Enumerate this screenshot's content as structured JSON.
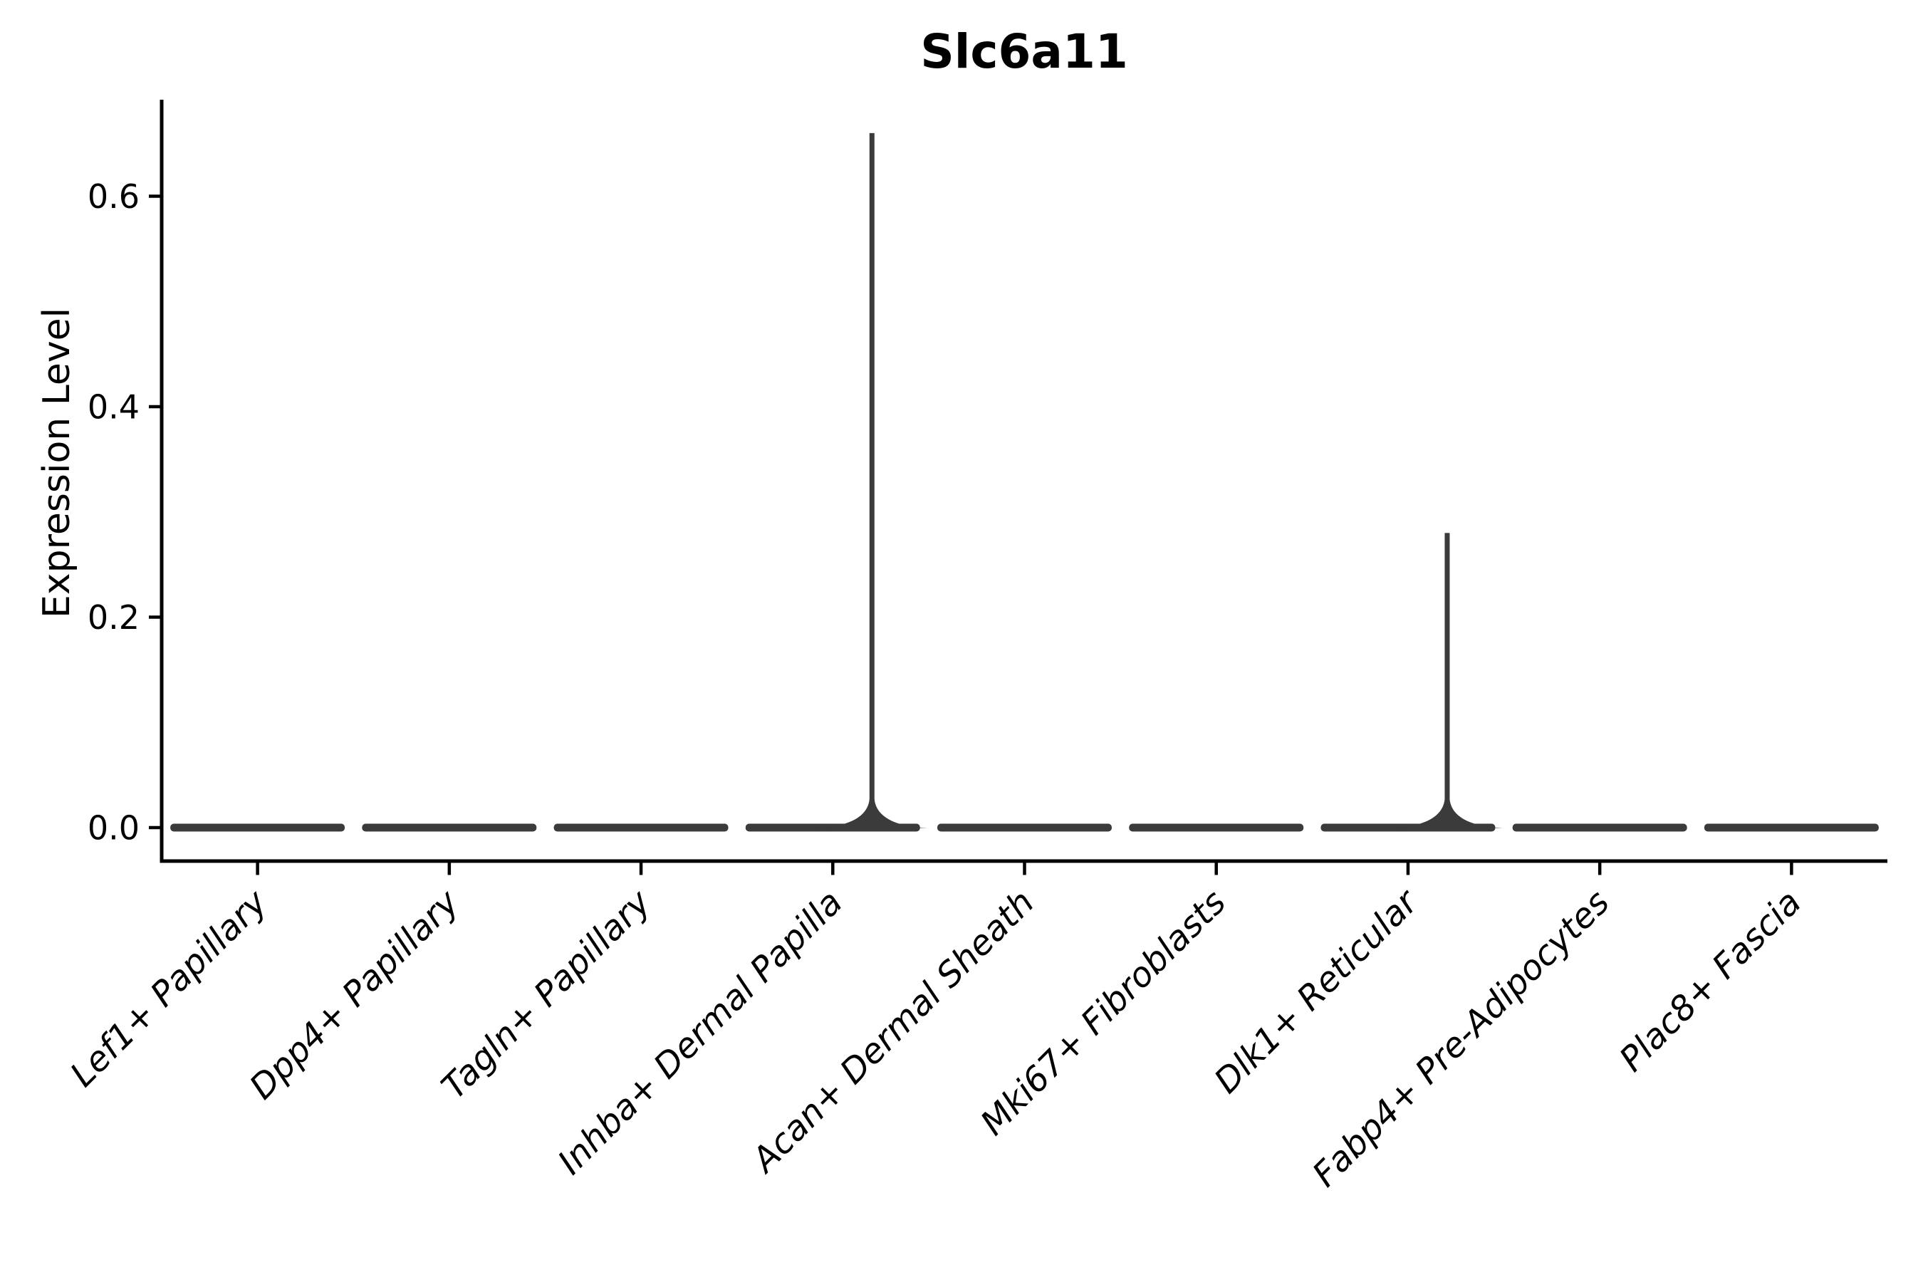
{
  "figure": {
    "background": "#ffffff"
  },
  "chart_data": {
    "type": "violin",
    "title": "Slc6a11",
    "ylabel": "Expression Level",
    "xlabel": "",
    "categories": [
      "Lef1+ Papillary",
      "Dpp4+ Papillary",
      "Tagln+ Papillary",
      "Inhba+ Dermal Papilla",
      "Acan+ Dermal Sheath",
      "Mki67+ Fibroblasts",
      "Dlk1+ Reticular",
      "Fabp4+ Pre-Adipocytes",
      "Plac8+ Fascia"
    ],
    "violins": [
      {
        "category": "Lef1+ Papillary",
        "bulk_value": 0.0,
        "max_value": 0.0
      },
      {
        "category": "Dpp4+ Papillary",
        "bulk_value": 0.0,
        "max_value": 0.0
      },
      {
        "category": "Tagln+ Papillary",
        "bulk_value": 0.0,
        "max_value": 0.0
      },
      {
        "category": "Inhba+ Dermal Papilla",
        "bulk_value": 0.0,
        "max_value": 0.66
      },
      {
        "category": "Acan+ Dermal Sheath",
        "bulk_value": 0.0,
        "max_value": 0.0
      },
      {
        "category": "Mki67+ Fibroblasts",
        "bulk_value": 0.0,
        "max_value": 0.0
      },
      {
        "category": "Dlk1+ Reticular",
        "bulk_value": 0.0,
        "max_value": 0.28
      },
      {
        "category": "Fabp4+ Pre-Adipocytes",
        "bulk_value": 0.0,
        "max_value": 0.0
      },
      {
        "category": "Plac8+ Fascia",
        "bulk_value": 0.0,
        "max_value": 0.0
      }
    ],
    "y_ticks": [
      {
        "label": "0.0",
        "value": 0.0
      },
      {
        "label": "0.2",
        "value": 0.2
      },
      {
        "label": "0.4",
        "value": 0.4
      },
      {
        "label": "0.6",
        "value": 0.6
      }
    ],
    "ylim": [
      -0.032,
      0.69
    ],
    "grid": false,
    "legend": "none",
    "colors": {
      "violin_fill": "#3b3b3b",
      "axis": "#000000",
      "text": "#000000"
    }
  }
}
